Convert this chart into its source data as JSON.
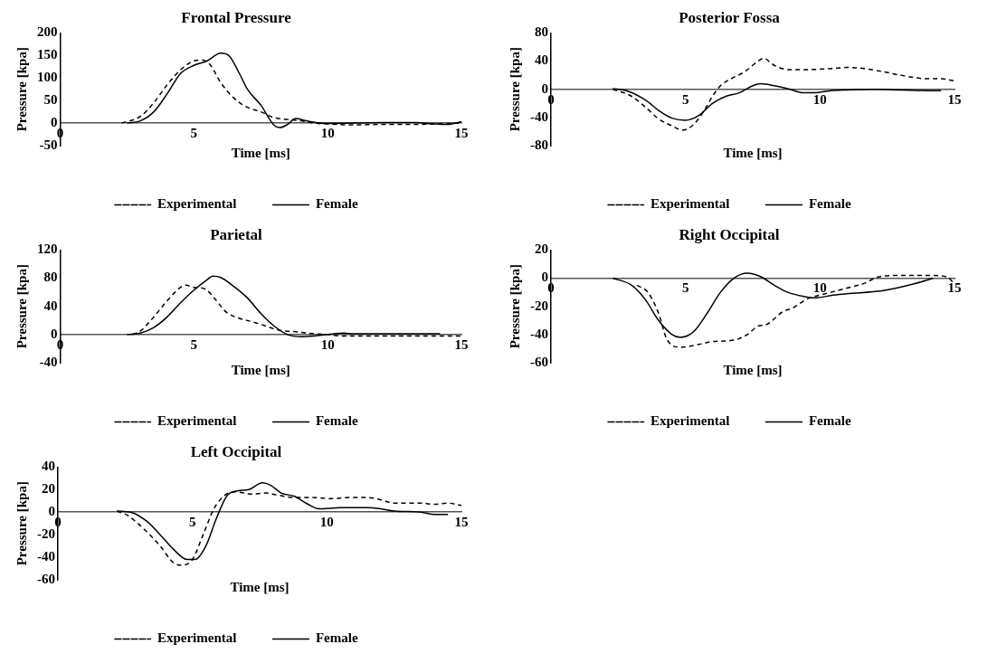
{
  "chart_data": [
    {
      "type": "line",
      "title": "Frontal Pressure",
      "xlabel": "Time [ms]",
      "ylabel": "Pressure [kpa]",
      "xlim": [
        0,
        15
      ],
      "xticks": [
        0,
        5,
        10,
        15
      ],
      "ylim": [
        -50,
        200
      ],
      "yticks": [
        -50,
        0,
        50,
        100,
        150,
        200
      ],
      "grid": false,
      "legend": "bottom",
      "marker": "none",
      "series": [
        {
          "name": "Experimental",
          "color": "#000000",
          "line_style": "dashed",
          "x": [
            2.3,
            3.0,
            3.5,
            4.0,
            4.5,
            5.0,
            5.3,
            5.6,
            6.0,
            6.5,
            7.0,
            7.5,
            8.0,
            8.5,
            9.0,
            9.5,
            10,
            11,
            12,
            13,
            14,
            15
          ],
          "values": [
            0,
            15,
            45,
            85,
            118,
            138,
            140,
            130,
            90,
            55,
            35,
            25,
            12,
            8,
            5,
            0,
            -2,
            -4,
            -3,
            -3,
            -2,
            0
          ]
        },
        {
          "name": "Female",
          "color": "#000000",
          "line_style": "solid",
          "x": [
            2.5,
            3.0,
            3.5,
            4.0,
            4.5,
            5.0,
            5.5,
            6.0,
            6.3,
            6.7,
            7.0,
            7.5,
            8.0,
            8.2,
            8.5,
            8.8,
            9.2,
            9.7,
            10,
            12,
            13.3,
            14,
            14.5,
            15
          ],
          "values": [
            0,
            5,
            25,
            65,
            110,
            128,
            138,
            155,
            150,
            110,
            75,
            40,
            -5,
            -10,
            -3,
            10,
            5,
            0,
            -1,
            1,
            1,
            -2,
            -3,
            3
          ]
        }
      ]
    },
    {
      "type": "line",
      "title": "Posterior Fossa",
      "xlabel": "Time [ms]",
      "ylabel": "Pressure [kpa]",
      "xlim": [
        0,
        15
      ],
      "xticks": [
        0,
        5,
        10,
        15
      ],
      "ylim": [
        -80,
        80
      ],
      "yticks": [
        -80,
        -40,
        0,
        40,
        80
      ],
      "grid": false,
      "legend": "bottom",
      "marker": "none",
      "series": [
        {
          "name": "Experimental",
          "color": "#000000",
          "line_style": "dashed",
          "x": [
            2.3,
            3.0,
            3.5,
            4.0,
            4.5,
            4.9,
            5.3,
            5.7,
            6.0,
            6.3,
            6.7,
            7.2,
            7.7,
            7.9,
            8.3,
            8.8,
            9.5,
            10.3,
            11,
            11.5,
            12.2,
            13,
            14,
            14.5,
            15
          ],
          "values": [
            0,
            -10,
            -25,
            -42,
            -52,
            -58,
            -50,
            -30,
            -10,
            5,
            15,
            25,
            40,
            44,
            34,
            28,
            28,
            29,
            31,
            30,
            26,
            20,
            15,
            15,
            12
          ]
        },
        {
          "name": "Female",
          "color": "#000000",
          "line_style": "solid",
          "x": [
            2.3,
            2.8,
            3.5,
            4.0,
            4.5,
            5.0,
            5.5,
            6.0,
            6.5,
            7.0,
            7.5,
            7.8,
            8.3,
            8.8,
            9.4,
            9.8,
            10.4,
            11,
            12,
            13,
            14,
            14.5
          ],
          "values": [
            1,
            -2,
            -15,
            -30,
            -41,
            -44,
            -37,
            -20,
            -10,
            -5,
            5,
            8,
            5,
            1,
            -5,
            -5,
            -2,
            -1,
            0,
            -1,
            -2,
            -2
          ]
        }
      ]
    },
    {
      "type": "line",
      "title": "Parietal",
      "xlabel": "Time [ms]",
      "ylabel": "Pressure [kpa]",
      "xlim": [
        0,
        15
      ],
      "xticks": [
        0,
        5,
        10,
        15
      ],
      "ylim": [
        -40,
        120
      ],
      "yticks": [
        -40,
        0,
        40,
        80,
        120
      ],
      "grid": false,
      "legend": "bottom",
      "marker": "none",
      "series": [
        {
          "name": "Experimental",
          "color": "#000000",
          "line_style": "dashed",
          "x": [
            2.7,
            3.0,
            3.5,
            4.0,
            4.5,
            4.7,
            5.0,
            5.4,
            5.8,
            6.2,
            6.7,
            7.2,
            7.7,
            8.2,
            8.8,
            9.5,
            10,
            10.5,
            15
          ],
          "values": [
            0,
            5,
            25,
            48,
            67,
            70,
            67,
            65,
            50,
            32,
            23,
            18,
            12,
            6,
            4,
            1,
            0,
            -2,
            -2
          ]
        },
        {
          "name": "Female",
          "color": "#000000",
          "line_style": "solid",
          "x": [
            2.5,
            3.0,
            3.5,
            4.0,
            4.5,
            5.0,
            5.5,
            5.7,
            6.0,
            6.5,
            7.0,
            7.5,
            8.0,
            8.5,
            9.0,
            9.5,
            10,
            10.6,
            11,
            12,
            13,
            14.2
          ],
          "values": [
            0,
            2,
            10,
            25,
            45,
            63,
            78,
            83,
            81,
            68,
            52,
            30,
            12,
            0,
            -3,
            -2,
            0,
            2,
            1,
            1,
            1,
            1
          ]
        }
      ]
    },
    {
      "type": "line",
      "title": "Right Occipital",
      "xlabel": "Time [ms]",
      "ylabel": "Pressure [kpa]",
      "xlim": [
        0,
        15
      ],
      "xticks": [
        0,
        5,
        10,
        15
      ],
      "ylim": [
        -60,
        20
      ],
      "yticks": [
        -60,
        -40,
        -20,
        0,
        20
      ],
      "grid": false,
      "legend": "bottom",
      "marker": "none",
      "series": [
        {
          "name": "Experimental",
          "color": "#000000",
          "line_style": "dashed",
          "x": [
            3.2,
            3.6,
            4.0,
            4.3,
            4.8,
            5.5,
            6.0,
            6.8,
            7.3,
            7.7,
            8.0,
            8.6,
            9.0,
            9.5,
            10,
            10.4,
            11,
            11.6,
            12.2,
            13,
            14,
            14.7,
            15
          ],
          "values": [
            -5,
            -10,
            -25,
            -43,
            -49,
            -47,
            -45,
            -44,
            -40,
            -34,
            -33,
            -24,
            -21,
            -15,
            -12,
            -10,
            -7,
            -4,
            1,
            2,
            2,
            1,
            -4
          ]
        },
        {
          "name": "Female",
          "color": "#000000",
          "line_style": "solid",
          "x": [
            2.3,
            3.0,
            3.5,
            4.0,
            4.5,
            4.8,
            5.3,
            5.8,
            6.3,
            6.8,
            7.3,
            7.8,
            8.3,
            8.8,
            9.4,
            9.8,
            10.5,
            11,
            12.3,
            13.5,
            14.2
          ],
          "values": [
            0,
            -5,
            -15,
            -30,
            -40,
            -42,
            -38,
            -25,
            -10,
            0,
            3.5,
            1,
            -5,
            -10,
            -13,
            -14,
            -12,
            -11,
            -9,
            -4,
            0
          ]
        }
      ]
    },
    {
      "type": "line",
      "title": "Left Occipital",
      "xlabel": "Time [ms]",
      "ylabel": "Pressure [kpa]",
      "xlim": [
        0,
        15
      ],
      "xticks": [
        0,
        5,
        10,
        15
      ],
      "ylim": [
        -60,
        40
      ],
      "yticks": [
        -60,
        -40,
        -20,
        0,
        20,
        40
      ],
      "grid": false,
      "legend": "bottom",
      "marker": "none",
      "series": [
        {
          "name": "Experimental",
          "color": "#000000",
          "line_style": "dashed",
          "x": [
            2.2,
            2.6,
            3.2,
            3.8,
            4.3,
            4.6,
            5.0,
            5.4,
            5.8,
            6.2,
            6.6,
            7.2,
            7.7,
            8.2,
            8.8,
            9.5,
            10.2,
            10.8,
            11.5,
            12.0,
            12.5,
            13.5,
            14,
            14.5,
            15
          ],
          "values": [
            1,
            -3,
            -15,
            -30,
            -45,
            -47,
            -42,
            -20,
            3,
            15,
            18,
            16,
            17,
            15,
            13,
            13,
            12,
            13,
            13,
            11,
            8,
            8,
            7,
            8,
            6
          ]
        },
        {
          "name": "Female",
          "color": "#000000",
          "line_style": "solid",
          "x": [
            2.2,
            2.7,
            3.3,
            3.8,
            4.3,
            4.8,
            5.1,
            5.5,
            5.9,
            6.3,
            6.7,
            7.1,
            7.6,
            7.9,
            8.3,
            8.8,
            9.3,
            9.7,
            10.5,
            11.5,
            12.0,
            12.5,
            13.5,
            14.0,
            14.5
          ],
          "values": [
            1,
            0,
            -8,
            -20,
            -33,
            -42,
            -42,
            -30,
            -5,
            15,
            19,
            20,
            26,
            24,
            17,
            14,
            7,
            3,
            4,
            4,
            3,
            1,
            0,
            -2,
            -2
          ]
        }
      ]
    }
  ]
}
